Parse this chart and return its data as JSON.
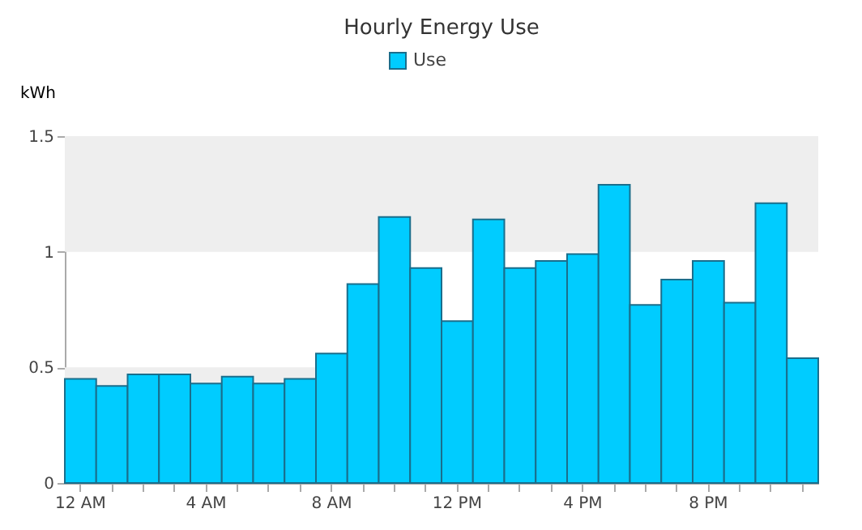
{
  "chart_data": {
    "type": "bar",
    "title": "Hourly Energy Use",
    "ylabel": "kWh",
    "categories": [
      "12 AM",
      null,
      null,
      null,
      "4 AM",
      null,
      null,
      null,
      "8 AM",
      null,
      null,
      null,
      "12 PM",
      null,
      null,
      null,
      "4 PM",
      null,
      null,
      null,
      "8 PM",
      null,
      null,
      null
    ],
    "series": [
      {
        "name": "Use",
        "color": "#00ccff",
        "values": [
          0.45,
          0.42,
          0.47,
          0.47,
          0.43,
          0.46,
          0.43,
          0.45,
          0.56,
          0.86,
          1.15,
          0.93,
          0.7,
          1.14,
          0.93,
          0.96,
          0.99,
          1.29,
          0.77,
          0.88,
          0.96,
          0.78,
          1.21,
          0.54
        ]
      }
    ],
    "ylim": [
      0,
      1.5
    ],
    "yticks": [
      0,
      0.5,
      1,
      1.5
    ],
    "bands": [
      {
        "axis": "y",
        "from": 0,
        "to": 0.5,
        "color": "#eeeeee"
      },
      {
        "axis": "y",
        "from": 1,
        "to": 1.5,
        "color": "#eeeeee"
      }
    ],
    "legend": "top"
  }
}
